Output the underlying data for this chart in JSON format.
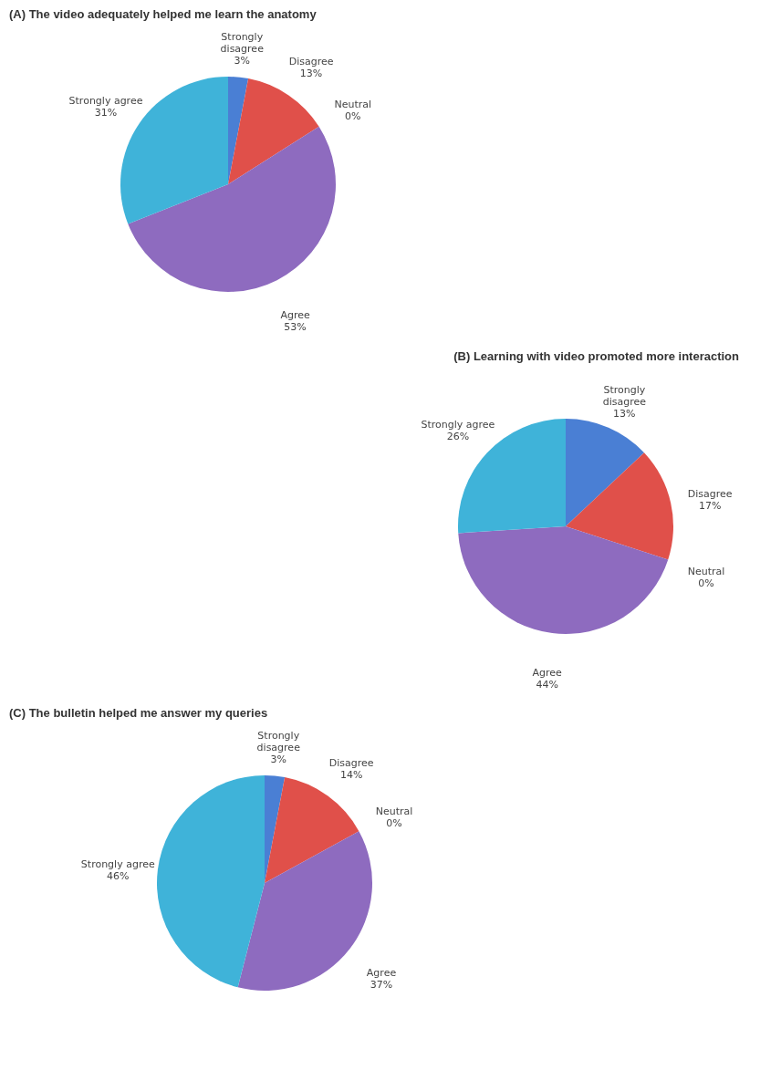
{
  "chart_data": [
    {
      "type": "pie",
      "title": "(A) The video adequately helped me learn the anatomy",
      "categories": [
        "Strongly disagree",
        "Disagree",
        "Neutral",
        "Agree",
        "Strongly agree"
      ],
      "values": [
        3,
        13,
        0,
        53,
        31
      ],
      "value_labels": [
        "3%",
        "13%",
        "0%",
        "53%",
        "31%"
      ],
      "colors": [
        "#4a7fd4",
        "#e0504a",
        "#9bbb59",
        "#8e6bbf",
        "#3fb3d9"
      ],
      "legend": false
    },
    {
      "type": "pie",
      "title": "(B) Learning with video promoted more interaction",
      "categories": [
        "Strongly disagree",
        "Disagree",
        "Neutral",
        "Agree",
        "Strongly agree"
      ],
      "values": [
        13,
        17,
        0,
        44,
        26
      ],
      "value_labels": [
        "13%",
        "17%",
        "0%",
        "44%",
        "26%"
      ],
      "colors": [
        "#4a7fd4",
        "#e0504a",
        "#9bbb59",
        "#8e6bbf",
        "#3fb3d9"
      ],
      "legend": false
    },
    {
      "type": "pie",
      "title": "(C) The bulletin helped me answer my queries",
      "categories": [
        "Strongly disagree",
        "Disagree",
        "Neutral",
        "Agree",
        "Strongly agree"
      ],
      "values": [
        3,
        14,
        0,
        37,
        46
      ],
      "value_labels": [
        "3%",
        "14%",
        "0%",
        "37%",
        "46%"
      ],
      "colors": [
        "#4a7fd4",
        "#e0504a",
        "#9bbb59",
        "#8e6bbf",
        "#3fb3d9"
      ],
      "legend": false
    }
  ]
}
